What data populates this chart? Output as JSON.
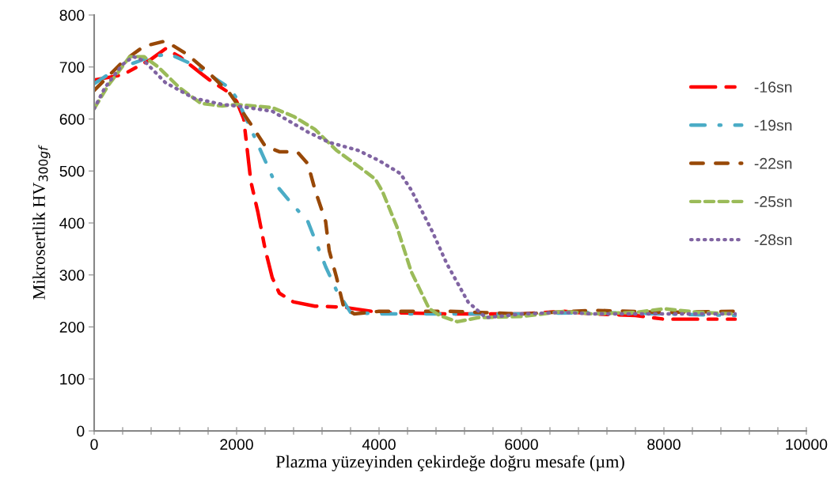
{
  "chart_data": {
    "type": "line",
    "xlabel": "Plazma yüzeyinden çekirdeğe doğru mesafe (µm)",
    "ylabel": "Mikrosertlik HV$_{300gf}$",
    "xlim": [
      0,
      10000
    ],
    "xticks": [
      0,
      {
        "value": 400,
        "label": null
      },
      {
        "value": 800,
        "label": null
      },
      {
        "value": 1200,
        "label": null
      },
      {
        "value": 1600,
        "label": null
      },
      2000,
      {
        "value": 2400,
        "label": null
      },
      {
        "value": 2800,
        "label": null
      },
      {
        "value": 3200,
        "label": null
      },
      {
        "value": 3600,
        "label": null
      },
      4000,
      {
        "value": 4400,
        "label": null
      },
      {
        "value": 4800,
        "label": null
      },
      {
        "value": 5200,
        "label": null
      },
      {
        "value": 5600,
        "label": null
      },
      6000,
      {
        "value": 6400,
        "label": null
      },
      {
        "value": 6800,
        "label": null
      },
      {
        "value": 7200,
        "label": null
      },
      {
        "value": 7600,
        "label": null
      },
      8000,
      {
        "value": 8400,
        "label": null
      },
      {
        "value": 8800,
        "label": null
      },
      {
        "value": 9200,
        "label": null
      },
      {
        "value": 9600,
        "label": null
      },
      10000
    ],
    "ylim": [
      0,
      800
    ],
    "yticks": [
      0,
      100,
      200,
      300,
      400,
      500,
      600,
      700,
      800
    ],
    "grid": false,
    "legend": "right",
    "marker": "none",
    "series": [
      {
        "name": "-16sn",
        "color": "#ff0000",
        "line_style": "long_dash_dot",
        "x": [
          0,
          400,
          800,
          1000,
          1200,
          1600,
          1900,
          2000,
          2100,
          2200,
          2300,
          2400,
          2500,
          2600,
          2800,
          3100,
          3500,
          4000,
          5000,
          6000,
          6600,
          7000,
          7600,
          8000,
          9000
        ],
        "values": [
          675,
          685,
          715,
          735,
          720,
          677,
          650,
          634,
          600,
          480,
          420,
          350,
          295,
          265,
          248,
          240,
          238,
          228,
          225,
          225,
          230,
          225,
          222,
          215,
          215
        ]
      },
      {
        "name": "-19sn",
        "color": "#4bacc6",
        "line_style": "dash_dot",
        "x": [
          0,
          300,
          800,
          1050,
          1400,
          1900,
          2000,
          2250,
          2550,
          2750,
          3000,
          3250,
          3400,
          3600,
          4000,
          5000,
          6000,
          7000,
          8000,
          9000
        ],
        "values": [
          668,
          695,
          720,
          725,
          704,
          660,
          640,
          566,
          474,
          441,
          403,
          316,
          271,
          228,
          225,
          225,
          225,
          228,
          225,
          222
        ]
      },
      {
        "name": "-22sn",
        "color": "#984807",
        "line_style": "dashed",
        "x": [
          0,
          400,
          700,
          1000,
          1300,
          1600,
          1900,
          2000,
          2200,
          2400,
          2600,
          2850,
          3000,
          3100,
          3250,
          3300,
          3400,
          3500,
          3650,
          4000,
          5000,
          6000,
          7000,
          8000,
          9000
        ],
        "values": [
          655,
          710,
          740,
          750,
          725,
          690,
          650,
          630,
          590,
          548,
          537,
          537,
          514,
          464,
          403,
          347,
          297,
          240,
          225,
          230,
          230,
          225,
          232,
          228,
          230
        ]
      },
      {
        "name": "-25sn",
        "color": "#9bbb59",
        "line_style": "short_dash",
        "x": [
          0,
          200,
          500,
          700,
          900,
          1200,
          1500,
          1800,
          2000,
          2500,
          2800,
          3100,
          3400,
          3700,
          3950,
          4050,
          4250,
          4450,
          4700,
          4850,
          5100,
          5400,
          6000,
          6600,
          7000,
          7600,
          8000,
          8500,
          9000
        ],
        "values": [
          620,
          665,
          720,
          720,
          700,
          660,
          630,
          625,
          628,
          622,
          605,
          580,
          540,
          510,
          484,
          460,
          393,
          307,
          236,
          222,
          210,
          218,
          220,
          230,
          225,
          228,
          235,
          228,
          225
        ]
      },
      {
        "name": "-28sn",
        "color": "#8064a2",
        "line_style": "dotted",
        "x": [
          0,
          150,
          400,
          550,
          700,
          1000,
          1400,
          1800,
          2000,
          2500,
          3000,
          3300,
          3700,
          4000,
          4300,
          4450,
          4750,
          4950,
          5250,
          5500,
          5800,
          6000,
          6600,
          7000,
          8000,
          9000
        ],
        "values": [
          620,
          660,
          705,
          720,
          712,
          670,
          640,
          628,
          625,
          615,
          575,
          555,
          540,
          520,
          495,
          464,
          383,
          322,
          248,
          218,
          222,
          225,
          228,
          225,
          225,
          225
        ]
      }
    ]
  }
}
